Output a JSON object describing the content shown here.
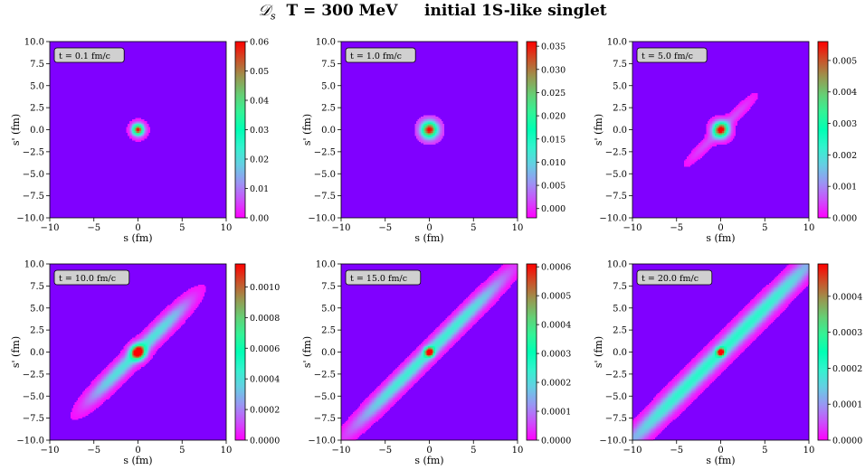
{
  "suptitle": {
    "symbol": "𝒟",
    "subscript": "s",
    "rest": "  T = 300 MeV     initial 1S-like singlet"
  },
  "panel_common": {
    "xlabel": "s (fm)",
    "ylabel": "s' (fm)",
    "xlim": [
      -10,
      10
    ],
    "ylim": [
      -10,
      10
    ],
    "xticks": [
      "−10",
      "−5",
      "0",
      "5",
      "10"
    ],
    "yticks": [
      "−10.0",
      "−7.5",
      "−5.0",
      "−2.5",
      "0.0",
      "2.5",
      "5.0",
      "7.5",
      "10.0"
    ],
    "colormap": "rainbow",
    "colors": {
      "low": "#8000ff",
      "mid": "#2adddd",
      "high": "#ff0000"
    }
  },
  "chart_data": [
    {
      "type": "heatmap",
      "annotation": "t = 0.1 fm/c",
      "cbar_range": [
        0,
        0.06
      ],
      "cbar_ticks": [
        "0.00",
        "0.01",
        "0.02",
        "0.03",
        "0.04",
        "0.05",
        "0.06"
      ],
      "peak_width_fm": 0.45,
      "diag_width_fm": 0.3,
      "diag_length_fm": 0,
      "diag_strength": 0
    },
    {
      "type": "heatmap",
      "annotation": "t = 1.0 fm/c",
      "cbar_range": [
        -0.002,
        0.036
      ],
      "cbar_ticks": [
        "0.000",
        "0.005",
        "0.010",
        "0.015",
        "0.020",
        "0.025",
        "0.030",
        "0.035"
      ],
      "peak_width_fm": 0.6,
      "diag_width_fm": 0.4,
      "diag_length_fm": 1,
      "diag_strength": 0.05
    },
    {
      "type": "heatmap",
      "annotation": "t = 5.0 fm/c",
      "cbar_range": [
        0,
        0.0056
      ],
      "cbar_ticks": [
        "0.000",
        "0.001",
        "0.002",
        "0.003",
        "0.004",
        "0.005"
      ],
      "peak_width_fm": 0.6,
      "diag_width_fm": 0.35,
      "diag_length_fm": 5,
      "diag_strength": 0.1
    },
    {
      "type": "heatmap",
      "annotation": "t = 10.0 fm/c",
      "cbar_range": [
        0,
        0.00115
      ],
      "cbar_ticks": [
        "0.0000",
        "0.0002",
        "0.0004",
        "0.0006",
        "0.0008",
        "0.0010"
      ],
      "peak_width_fm": 0.55,
      "diag_width_fm": 0.55,
      "diag_length_fm": 8,
      "diag_strength": 0.35
    },
    {
      "type": "heatmap",
      "annotation": "t = 15.0 fm/c",
      "cbar_range": [
        0,
        0.00061
      ],
      "cbar_ticks": [
        "0.0000",
        "0.0001",
        "0.0002",
        "0.0003",
        "0.0004",
        "0.0005",
        "0.0006"
      ],
      "peak_width_fm": 0.35,
      "diag_width_fm": 0.55,
      "diag_length_fm": 12,
      "diag_strength": 0.38
    },
    {
      "type": "heatmap",
      "annotation": "t = 20.0 fm/c",
      "cbar_range": [
        0,
        0.00049
      ],
      "cbar_ticks": [
        "0.0000",
        "0.0001",
        "0.0002",
        "0.0003",
        "0.0004"
      ],
      "peak_width_fm": 0.3,
      "diag_width_fm": 0.65,
      "diag_length_fm": 16,
      "diag_strength": 0.42
    }
  ]
}
